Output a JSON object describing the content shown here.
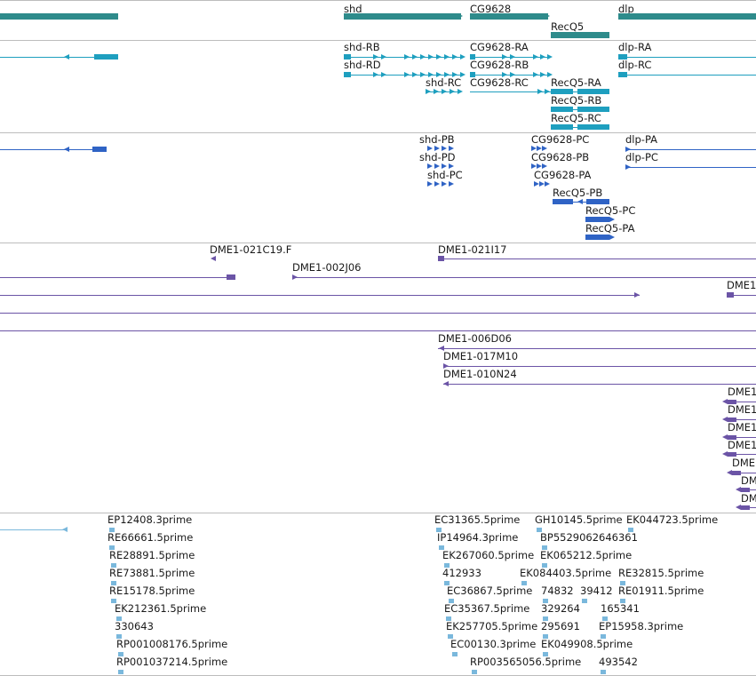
{
  "colors": {
    "gene": "#2e8b8b",
    "transcript": "#1e9fbf",
    "protein": "#2f63c5",
    "clone": "#6b54a6",
    "est": "#7ab8dc",
    "separator": "#bdbdbd"
  },
  "tracks": {
    "gene": {
      "features": [
        {
          "label": "shd"
        },
        {
          "label": "CG9628"
        },
        {
          "label": "RecQ5"
        },
        {
          "label": "dlp"
        }
      ]
    },
    "transcript": {
      "features": [
        {
          "label": "shd-RB"
        },
        {
          "label": "shd-RD"
        },
        {
          "label": "shd-RC"
        },
        {
          "label": "CG9628-RA"
        },
        {
          "label": "CG9628-RB"
        },
        {
          "label": "CG9628-RC"
        },
        {
          "label": "RecQ5-RA"
        },
        {
          "label": "RecQ5-RB"
        },
        {
          "label": "RecQ5-RC"
        },
        {
          "label": "dlp-RA"
        },
        {
          "label": "dlp-RC"
        }
      ]
    },
    "protein": {
      "features": [
        {
          "label": "shd-PB"
        },
        {
          "label": "shd-PD"
        },
        {
          "label": "shd-PC"
        },
        {
          "label": "CG9628-PC"
        },
        {
          "label": "CG9628-PB"
        },
        {
          "label": "CG9628-PA"
        },
        {
          "label": "RecQ5-PB"
        },
        {
          "label": "RecQ5-PC"
        },
        {
          "label": "RecQ5-PA"
        },
        {
          "label": "dlp-PA"
        },
        {
          "label": "dlp-PC"
        }
      ]
    },
    "clone": {
      "features": [
        {
          "label": "DME1-021C19.F"
        },
        {
          "label": "DME1-021I17"
        },
        {
          "label": "DME1-002J06"
        },
        {
          "label": "DME1"
        },
        {
          "label": "DME1-006D06"
        },
        {
          "label": "DME1-017M10"
        },
        {
          "label": "DME1-010N24"
        },
        {
          "label": "DME1"
        },
        {
          "label": "DME1"
        },
        {
          "label": "DME1"
        },
        {
          "label": "DME1"
        },
        {
          "label": "DME"
        },
        {
          "label": "DM"
        },
        {
          "label": "DM"
        }
      ]
    },
    "est": {
      "features": [
        {
          "label": "EP12408.3prime"
        },
        {
          "label": "RE66661.5prime"
        },
        {
          "label": "RE28891.5prime"
        },
        {
          "label": "RE73881.5prime"
        },
        {
          "label": "RE15178.5prime"
        },
        {
          "label": "EK212361.5prime"
        },
        {
          "label": "330643"
        },
        {
          "label": "RP001008176.5prime"
        },
        {
          "label": "RP001037214.5prime"
        },
        {
          "label": "EC31365.5prime"
        },
        {
          "label": "GH10145.5prime"
        },
        {
          "label": "EK044723.5prime"
        },
        {
          "label": "IP14964.3prime"
        },
        {
          "label": "BP5529062646361"
        },
        {
          "label": "EK267060.5prime"
        },
        {
          "label": "EK065212.5prime"
        },
        {
          "label": "412933"
        },
        {
          "label": "EK084403.5prime"
        },
        {
          "label": "RE32815.5prime"
        },
        {
          "label": "EC36867.5prime"
        },
        {
          "label": "74832"
        },
        {
          "label": "39412"
        },
        {
          "label": "RE01911.5prime"
        },
        {
          "label": "EC35367.5prime"
        },
        {
          "label": "329264"
        },
        {
          "label": "165341"
        },
        {
          "label": "EK257705.5prime"
        },
        {
          "label": "295691"
        },
        {
          "label": "EP15958.3prime"
        },
        {
          "label": "EC00130.3prime"
        },
        {
          "label": "EK049908.5prime"
        },
        {
          "label": "RP003565056.5prime"
        },
        {
          "label": "493542"
        }
      ]
    }
  }
}
